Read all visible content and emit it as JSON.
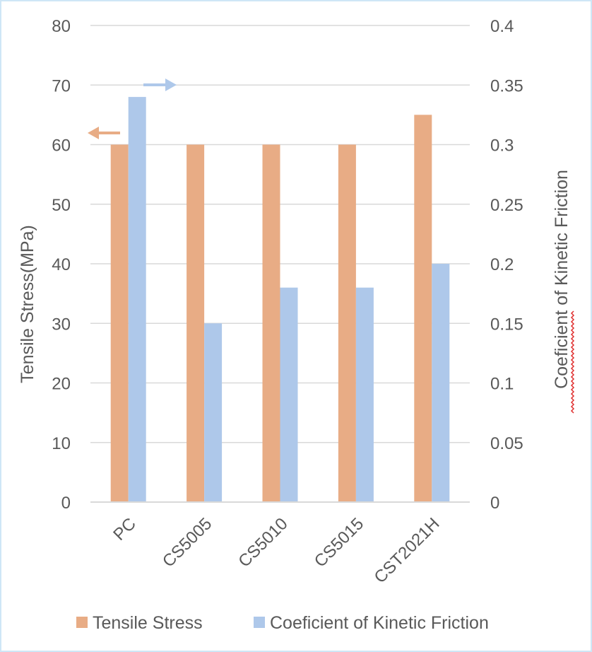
{
  "chart_data": {
    "type": "bar",
    "categories": [
      "PC",
      "CS5005",
      "CS5010",
      "CS5015",
      "CST2021H"
    ],
    "series": [
      {
        "name": "Tensile Stress",
        "axis": "left",
        "color": "#e8ac85",
        "values": [
          60,
          60,
          60,
          60,
          65
        ]
      },
      {
        "name": "Coeficient of Kinetic Friction",
        "axis": "right",
        "color": "#aec8ea",
        "values": [
          0.34,
          0.15,
          0.18,
          0.18,
          0.2
        ]
      }
    ],
    "title": "",
    "xlabel": "",
    "ylabel": "Tensile Stress(MPa)",
    "ylabel_right": "Coeficient of Kinetic Friction",
    "ylim": [
      0,
      80
    ],
    "ylim_right": [
      0,
      0.4
    ],
    "yticks": [
      "0",
      "10",
      "20",
      "30",
      "40",
      "50",
      "60",
      "70",
      "80"
    ],
    "yticks_right": [
      "0",
      "0.05",
      "0.1",
      "0.15",
      "0.2",
      "0.25",
      "0.3",
      "0.35",
      "0.4"
    ],
    "grid": true,
    "legend_position": "bottom",
    "annotations": [
      {
        "type": "arrow",
        "direction": "left",
        "color": "#e8ac85",
        "meaning": "left-axis"
      },
      {
        "type": "arrow",
        "direction": "right",
        "color": "#aec8ea",
        "meaning": "right-axis"
      }
    ]
  }
}
